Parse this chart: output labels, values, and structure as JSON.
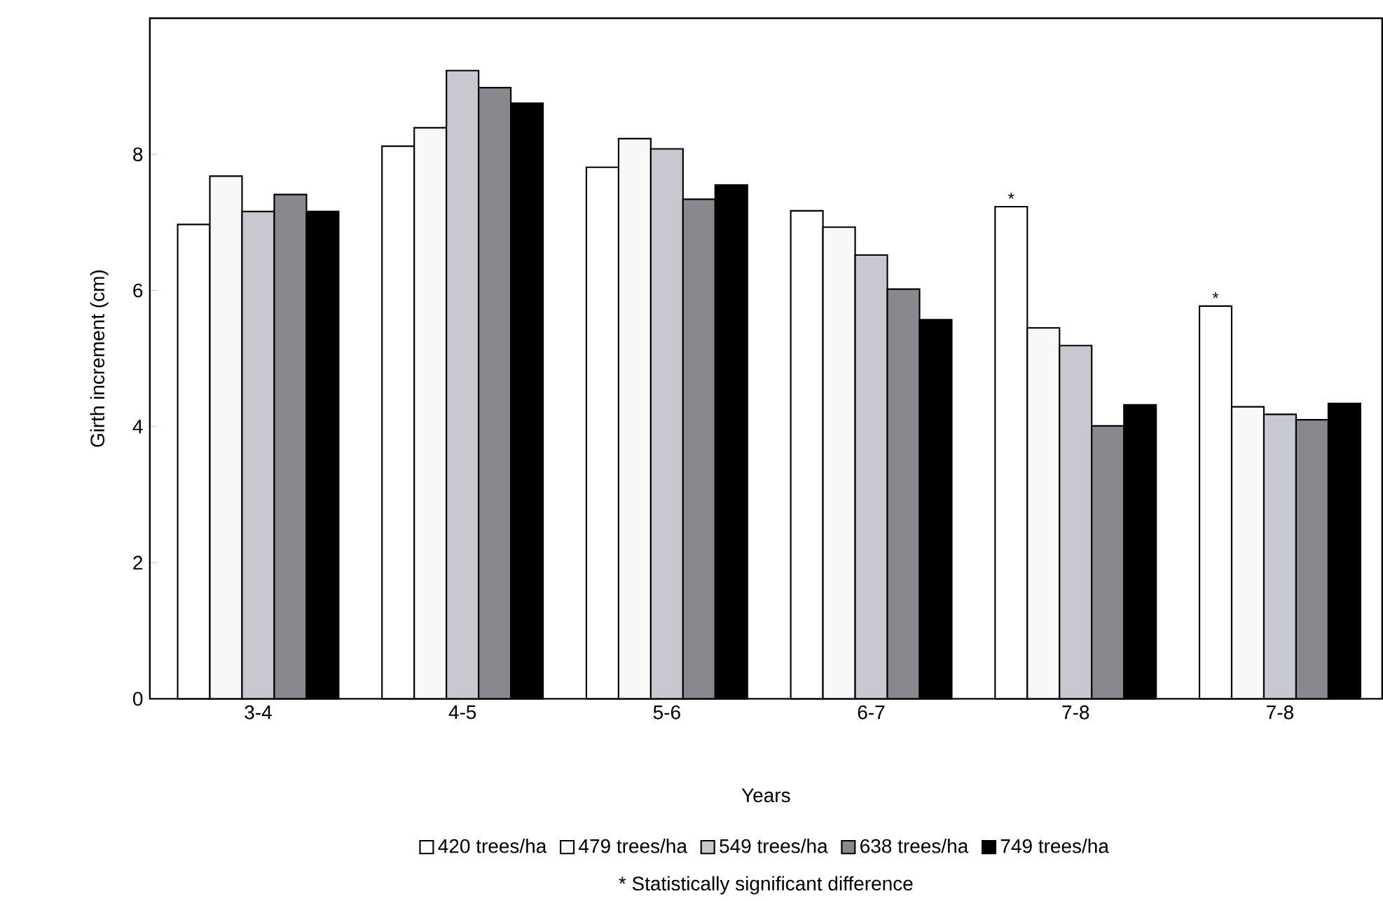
{
  "chart_data": {
    "type": "bar",
    "xlabel": "Years",
    "ylabel": "Girth increment (cm)",
    "categories": [
      "3-4",
      "4-5",
      "5-6",
      "6-7",
      "7-8",
      "7-8"
    ],
    "series": [
      {
        "name": "420 trees/ha",
        "color": "#ffffff",
        "values": [
          6.97,
          8.12,
          7.81,
          7.17,
          7.23,
          5.77
        ]
      },
      {
        "name": "479 trees/ha",
        "color": "#f8f8f8",
        "values": [
          7.68,
          8.39,
          8.23,
          6.93,
          5.45,
          4.29
        ]
      },
      {
        "name": "549 trees/ha",
        "color": "#c8c8d0",
        "values": [
          7.16,
          9.23,
          8.08,
          6.52,
          5.19,
          4.18
        ]
      },
      {
        "name": "638 trees/ha",
        "color": "#88888e",
        "values": [
          7.41,
          8.98,
          7.34,
          6.02,
          4.01,
          4.1
        ]
      },
      {
        "name": "749 trees/ha",
        "color": "#000000",
        "values": [
          7.16,
          8.75,
          7.55,
          5.57,
          4.32,
          4.34
        ]
      }
    ],
    "ylim": [
      0,
      10
    ],
    "yticks": [
      0,
      2,
      4,
      6,
      8
    ],
    "legend": "bottom",
    "annotations": [
      "*",
      "*",
      "* Statistically significant difference"
    ]
  }
}
